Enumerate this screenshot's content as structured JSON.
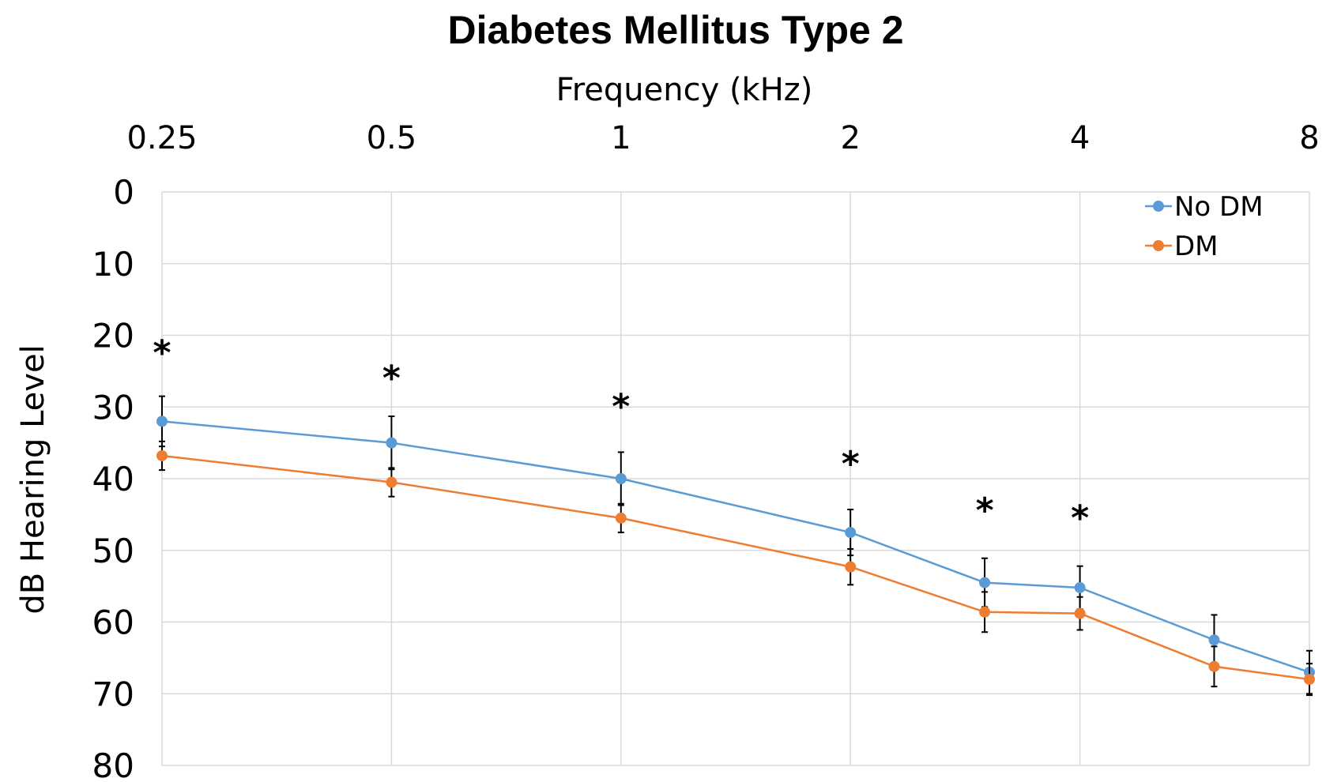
{
  "chart_data": {
    "type": "line",
    "title": "Diabetes Mellitus Type 2",
    "xlabel": "Frequency (kHz)",
    "ylabel": "dB Hearing Level",
    "x_scale": "log2",
    "x_tick_labels": [
      "0.25",
      "0.5",
      "1",
      "2",
      "4",
      "8"
    ],
    "x_ticks": [
      0.25,
      0.5,
      1,
      2,
      4,
      8
    ],
    "y_tick_labels": [
      "0",
      "10",
      "20",
      "30",
      "40",
      "50",
      "60",
      "70",
      "80"
    ],
    "ylim": [
      0,
      80
    ],
    "y_inverted": true,
    "grid": true,
    "legend": "top-right",
    "series": [
      {
        "name": "No DM",
        "color": "#5B9BD5",
        "x": [
          0.25,
          0.5,
          1,
          2,
          3,
          4,
          6,
          8
        ],
        "values": [
          32,
          35,
          40,
          47.5,
          54.5,
          55.2,
          62.5,
          67
        ],
        "error": [
          3.5,
          3.7,
          3.7,
          3.2,
          3.4,
          3,
          3.5,
          3
        ]
      },
      {
        "name": "DM",
        "color": "#ED7D31",
        "x": [
          0.25,
          0.5,
          1,
          2,
          3,
          4,
          6,
          8
        ],
        "values": [
          36.8,
          40.5,
          45.5,
          52.3,
          58.6,
          58.8,
          66.2,
          68
        ],
        "error": [
          2,
          2,
          2,
          2.5,
          2.8,
          2.3,
          2.8,
          2.2
        ]
      }
    ],
    "annotations": [
      {
        "text": "*",
        "x": 0.25,
        "y": 21
      },
      {
        "text": "*",
        "x": 0.5,
        "y": 24.5
      },
      {
        "text": "*",
        "x": 1,
        "y": 28.5
      },
      {
        "text": "*",
        "x": 2,
        "y": 36.5
      },
      {
        "text": "*",
        "x": 3,
        "y": 43
      },
      {
        "text": "*",
        "x": 4,
        "y": 44
      }
    ]
  }
}
